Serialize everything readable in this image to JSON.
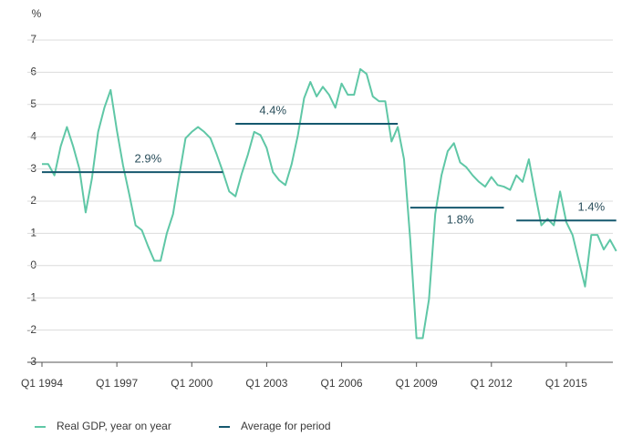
{
  "chart_data": {
    "type": "line",
    "y_label": "%",
    "categories": [
      "Q1 1994",
      null,
      null,
      null,
      null,
      null,
      null,
      null,
      null,
      null,
      null,
      null,
      "Q1 1997",
      null,
      null,
      null,
      null,
      null,
      null,
      null,
      null,
      null,
      null,
      null,
      "Q1 2000",
      null,
      null,
      null,
      null,
      null,
      null,
      null,
      null,
      null,
      null,
      null,
      "Q1 2003",
      null,
      null,
      null,
      null,
      null,
      null,
      null,
      null,
      null,
      null,
      null,
      "Q1 2006",
      null,
      null,
      null,
      null,
      null,
      null,
      null,
      null,
      null,
      null,
      null,
      "Q1 2009",
      null,
      null,
      null,
      null,
      null,
      null,
      null,
      null,
      null,
      null,
      null,
      "Q1 2012",
      null,
      null,
      null,
      null,
      null,
      null,
      null,
      null,
      null,
      null,
      null,
      "Q1 2015",
      null,
      null,
      null,
      null,
      null,
      null,
      null,
      null
    ],
    "series": [
      {
        "name": "Real GDP, year on year",
        "color": "#5fc7a6",
        "values": [
          3.15,
          3.15,
          2.8,
          3.7,
          4.3,
          3.7,
          3.0,
          1.65,
          2.7,
          4.15,
          4.9,
          5.45,
          4.2,
          3.1,
          2.2,
          1.25,
          1.1,
          0.6,
          0.15,
          0.15,
          1.0,
          1.6,
          2.8,
          3.95,
          4.15,
          4.3,
          4.15,
          3.95,
          3.45,
          2.9,
          2.3,
          2.15,
          2.85,
          3.45,
          4.15,
          4.05,
          3.65,
          2.9,
          2.65,
          2.5,
          3.15,
          4.05,
          5.2,
          5.7,
          5.25,
          5.55,
          5.3,
          4.9,
          5.65,
          5.3,
          5.3,
          6.1,
          5.95,
          5.25,
          5.1,
          5.1,
          3.85,
          4.3,
          3.3,
          0.8,
          -2.25,
          -2.25,
          -1.05,
          1.6,
          2.8,
          3.55,
          3.8,
          3.2,
          3.05,
          2.8,
          2.6,
          2.45,
          2.75,
          2.5,
          2.45,
          2.35,
          2.8,
          2.6,
          3.3,
          2.25,
          1.25,
          1.45,
          1.25,
          2.3,
          1.35,
          0.95,
          0.15,
          -0.65,
          0.95,
          0.95,
          0.5,
          0.8,
          0.45
        ]
      },
      {
        "name": "Average for period",
        "color": "#15586e",
        "values": [
          2.9,
          2.9,
          2.9,
          2.9,
          2.9,
          2.9,
          2.9,
          2.9,
          2.9,
          2.9,
          2.9,
          2.9,
          2.9,
          2.9,
          2.9,
          2.9,
          2.9,
          2.9,
          2.9,
          2.9,
          2.9,
          2.9,
          2.9,
          2.9,
          2.9,
          2.9,
          2.9,
          2.9,
          2.9,
          2.9,
          null,
          4.4,
          4.4,
          4.4,
          4.4,
          4.4,
          4.4,
          4.4,
          4.4,
          4.4,
          4.4,
          4.4,
          4.4,
          4.4,
          4.4,
          4.4,
          4.4,
          4.4,
          4.4,
          4.4,
          4.4,
          4.4,
          4.4,
          4.4,
          4.4,
          4.4,
          4.4,
          4.4,
          null,
          1.8,
          1.8,
          1.8,
          1.8,
          1.8,
          1.8,
          1.8,
          1.8,
          1.8,
          1.8,
          1.8,
          1.8,
          1.8,
          1.8,
          1.8,
          1.8,
          null,
          1.4,
          1.4,
          1.4,
          1.4,
          1.4,
          1.4,
          1.4,
          1.4,
          1.4,
          1.4,
          1.4,
          1.4,
          1.4,
          1.4,
          1.4,
          1.4,
          1.4
        ],
        "value_labels": [
          null,
          null,
          null,
          null,
          null,
          null,
          null,
          null,
          null,
          null,
          null,
          null,
          null,
          null,
          null,
          null,
          null,
          "2.9%",
          null,
          null,
          null,
          null,
          null,
          null,
          null,
          null,
          null,
          null,
          null,
          null,
          null,
          null,
          null,
          null,
          null,
          null,
          null,
          "4.4%",
          null,
          null,
          null,
          null,
          null,
          null,
          null,
          null,
          null,
          null,
          null,
          null,
          null,
          null,
          null,
          null,
          null,
          null,
          null,
          null,
          null,
          null,
          null,
          null,
          null,
          null,
          null,
          null,
          null,
          "1.8%",
          null,
          null,
          null,
          null,
          null,
          null,
          null,
          null,
          null,
          null,
          null,
          null,
          null,
          null,
          null,
          null,
          null,
          null,
          null,
          null,
          "1.4%",
          null,
          null,
          null,
          null
        ]
      }
    ],
    "ylim": [
      -3,
      7
    ],
    "yticks": [
      -3,
      -2,
      -1,
      0,
      1,
      2,
      3,
      4,
      5,
      6,
      7
    ],
    "grid": true
  }
}
